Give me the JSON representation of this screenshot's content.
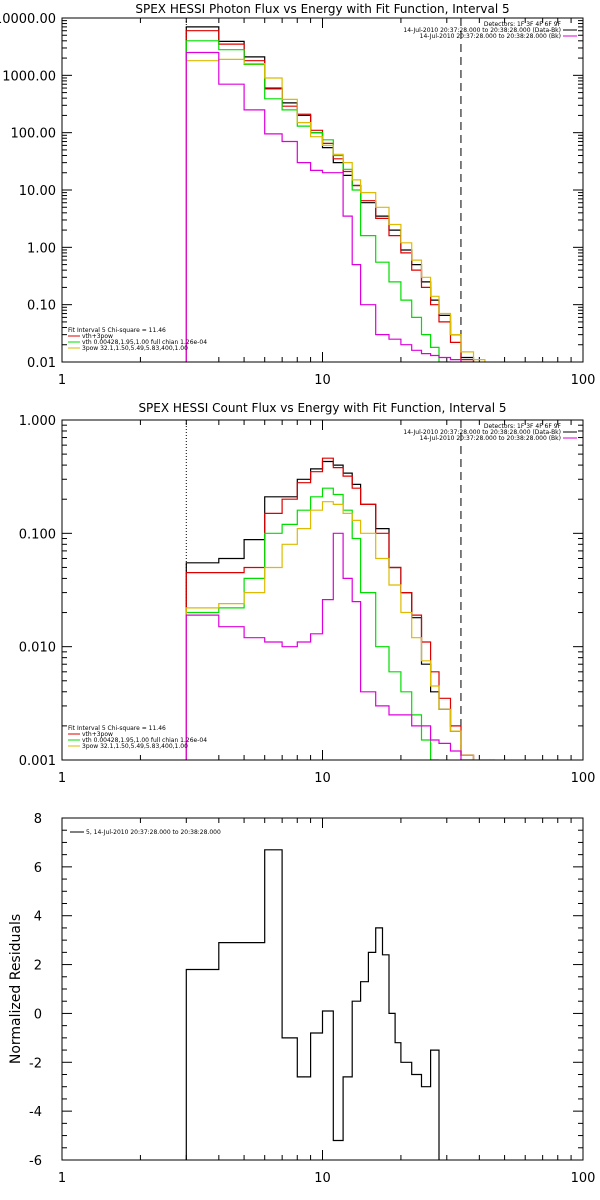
{
  "chart_data": [
    {
      "type": "line",
      "title": "SPEX HESSI Photon Flux vs Energy with Fit Function, Interval 5",
      "xlabel": "",
      "ylabel": "",
      "x_scale": "log",
      "y_scale": "log",
      "xlim": [
        1,
        100
      ],
      "ylim": [
        0.01,
        10000
      ],
      "x_tick_labels": [
        "1",
        "10",
        "100"
      ],
      "y_tick_labels": [
        "0.01",
        "0.10",
        "1.00",
        "10.00",
        "100.00",
        "1000.00",
        "10000.00"
      ],
      "legend_top": [
        "Detectors: 1F 3F 4F 6F 9F",
        "14-Jul-2010 20:37:28.000 to 20:38:28.000 (Data-Bk)",
        "14-Jul-2010 20:37:28.000 to 20:38:28.000 (Bk)"
      ],
      "legend_bottom_header": "Fit Interval 5   Chi-square = 11.46",
      "legend_bottom": [
        "vth+3pow",
        "vth 0.00428,1.95,1.00  full chian 1.26e-04",
        "3pow 32.1,1.50,5.49,5.83,400,1.00"
      ],
      "fit_min": 3,
      "fit_max": 34,
      "edges": [
        3,
        4,
        5,
        6,
        7,
        8,
        9,
        10,
        11,
        12,
        13,
        14,
        16,
        18,
        20,
        22,
        24,
        26,
        28,
        31,
        34,
        38,
        42
      ],
      "series": [
        {
          "name": "14-Jul-2010 20:37:28.000 to 20:38:28.000 (Data-Bk)",
          "color": "#000000",
          "values": [
            7000,
            3900,
            2100,
            600,
            330,
            200,
            100,
            55,
            30,
            18,
            12,
            6,
            3.5,
            2.0,
            0.9,
            0.5,
            0.25,
            0.12,
            0.065,
            0.03,
            0.012,
            null
          ]
        },
        {
          "name": "vth+3pow",
          "color": "#dd0000",
          "values": [
            6000,
            3500,
            1800,
            580,
            290,
            210,
            110,
            65,
            35,
            21,
            12,
            6.5,
            3.2,
            1.6,
            0.8,
            0.4,
            0.2,
            0.1,
            0.05,
            0.022,
            0.011,
            null
          ]
        },
        {
          "name": "vth 0.00428,1.95,1.00  full chian 1.26e-04",
          "color": "#00dd00",
          "values": [
            4000,
            2800,
            1550,
            390,
            250,
            130,
            100,
            75,
            40,
            23,
            10,
            1.6,
            0.55,
            0.25,
            0.12,
            0.06,
            0.03,
            0.018,
            0.01,
            null,
            null,
            null
          ]
        },
        {
          "name": "3pow 32.1,1.50,5.49,5.83,400,1.00",
          "color": "#ddbb00",
          "values": [
            1800,
            1900,
            1600,
            900,
            380,
            150,
            85,
            60,
            42,
            30,
            15,
            9,
            5,
            2.5,
            1.2,
            0.6,
            0.3,
            0.14,
            0.07,
            0.03,
            0.015,
            0.011
          ]
        },
        {
          "name": "14-Jul-2010 20:37:28.000 to 20:38:28.000 (Bk)",
          "color": "#dd00dd",
          "values": [
            2500,
            700,
            250,
            95,
            70,
            30,
            22,
            20,
            20,
            3.5,
            0.5,
            0.1,
            0.03,
            0.025,
            0.02,
            0.016,
            0.014,
            0.013,
            0.012,
            0.011,
            0.01,
            null
          ]
        }
      ]
    },
    {
      "type": "line",
      "title": "SPEX HESSI Count Flux vs Energy with Fit Function, Interval 5",
      "xlabel": "",
      "ylabel": "",
      "x_scale": "log",
      "y_scale": "log",
      "xlim": [
        1,
        100
      ],
      "ylim": [
        0.001,
        1.0
      ],
      "x_tick_labels": [
        "1",
        "10",
        "100"
      ],
      "y_tick_labels": [
        "0.001",
        "0.010",
        "0.100",
        "1.000"
      ],
      "legend_top": [
        "Detectors: 1F 3F 4F 6F 9F",
        "14-Jul-2010 20:37:28.000 to 20:38:28.000 (Data-Bk)",
        "14-Jul-2010 20:37:28.000 to 20:38:28.000 (Bk)"
      ],
      "legend_bottom_header": "Fit Interval 5   Chi-square = 11.46",
      "legend_bottom": [
        "vth+3pow",
        "vth 0.00428,1.95,1.00  full chian 1.26e-04",
        "3pow 32.1,1.50,5.49,5.83,400,1.00"
      ],
      "fit_min": 3,
      "fit_max": 34,
      "edges": [
        3,
        4,
        5,
        6,
        7,
        8,
        9,
        10,
        11,
        12,
        13,
        14,
        16,
        18,
        20,
        22,
        24,
        26,
        28,
        31,
        34,
        38,
        42,
        46
      ],
      "series": [
        {
          "name": "14-Jul-2010 20:37:28.000 to 20:38:28.000 (Data-Bk)",
          "color": "#000000",
          "values": [
            0.055,
            0.06,
            0.088,
            0.21,
            0.21,
            0.3,
            0.37,
            0.43,
            0.4,
            0.34,
            0.27,
            0.18,
            0.11,
            0.05,
            0.03,
            0.018,
            0.007,
            0.004,
            0.0028,
            0.0018,
            0.0011,
            null,
            null
          ]
        },
        {
          "name": "vth+3pow",
          "color": "#dd0000",
          "values": [
            0.045,
            0.045,
            0.05,
            0.15,
            0.2,
            0.28,
            0.35,
            0.46,
            0.38,
            0.32,
            0.25,
            0.18,
            0.1,
            0.05,
            0.03,
            0.019,
            0.011,
            0.006,
            0.0035,
            0.002,
            0.0011,
            null,
            null
          ]
        },
        {
          "name": "vth 0.00428,1.95,1.00  full chian 1.26e-04",
          "color": "#00dd00",
          "values": [
            0.02,
            0.022,
            0.04,
            0.1,
            0.12,
            0.16,
            0.21,
            0.25,
            0.22,
            0.16,
            0.09,
            0.03,
            0.01,
            0.006,
            0.004,
            0.0025,
            0.0015,
            0.001,
            null,
            null,
            null,
            null,
            null
          ]
        },
        {
          "name": "3pow 32.1,1.50,5.49,5.83,400,1.00",
          "color": "#ddbb00",
          "values": [
            0.022,
            0.024,
            0.03,
            0.05,
            0.08,
            0.11,
            0.16,
            0.19,
            0.18,
            0.15,
            0.13,
            0.1,
            0.06,
            0.035,
            0.02,
            0.012,
            0.0075,
            0.0045,
            0.0028,
            0.0018,
            0.0011,
            0.001,
            0.001
          ]
        },
        {
          "name": "14-Jul-2010 20:37:28.000 to 20:38:28.000 (Bk)",
          "color": "#dd00dd",
          "values": [
            0.019,
            0.015,
            0.012,
            0.011,
            0.01,
            0.011,
            0.013,
            0.026,
            0.1,
            0.04,
            0.025,
            0.004,
            0.003,
            0.0025,
            0.0025,
            0.002,
            0.002,
            0.0015,
            0.0014,
            0.0012,
            0.001,
            null,
            null
          ]
        }
      ]
    },
    {
      "type": "line",
      "title": "",
      "xlabel": "",
      "ylabel": "Normalized Residuals",
      "x_scale": "log",
      "y_scale": "linear",
      "xlim": [
        1,
        100
      ],
      "ylim": [
        -6,
        8
      ],
      "x_tick_labels": [
        "1",
        "10",
        "100"
      ],
      "y_tick_values": [
        -6,
        -4,
        -2,
        0,
        2,
        4,
        6,
        8
      ],
      "y_tick_labels": [
        "-6",
        "-4",
        "-2",
        "0",
        "2",
        "4",
        "6",
        "8"
      ],
      "legend": "5, 14-Jul-2010 20:37:28.000 to 20:38:28.000",
      "edges": [
        3,
        4,
        5,
        6,
        7,
        8,
        9,
        10,
        11,
        12,
        13,
        14,
        15,
        16,
        17,
        18,
        19,
        20,
        22,
        24,
        26,
        28,
        30,
        32,
        34
      ],
      "series": [
        {
          "name": "5, 14-Jul-2010 20:37:28.000 to 20:38:28.000",
          "color": "#000000",
          "values": [
            1.8,
            2.9,
            2.9,
            6.7,
            -1.0,
            -2.6,
            -0.8,
            0.1,
            -5.2,
            -2.6,
            0.5,
            1.3,
            2.5,
            3.5,
            2.4,
            0.0,
            -1.2,
            -2.0,
            -2.5,
            -3.0,
            -1.5,
            null,
            null,
            null
          ]
        }
      ]
    }
  ]
}
